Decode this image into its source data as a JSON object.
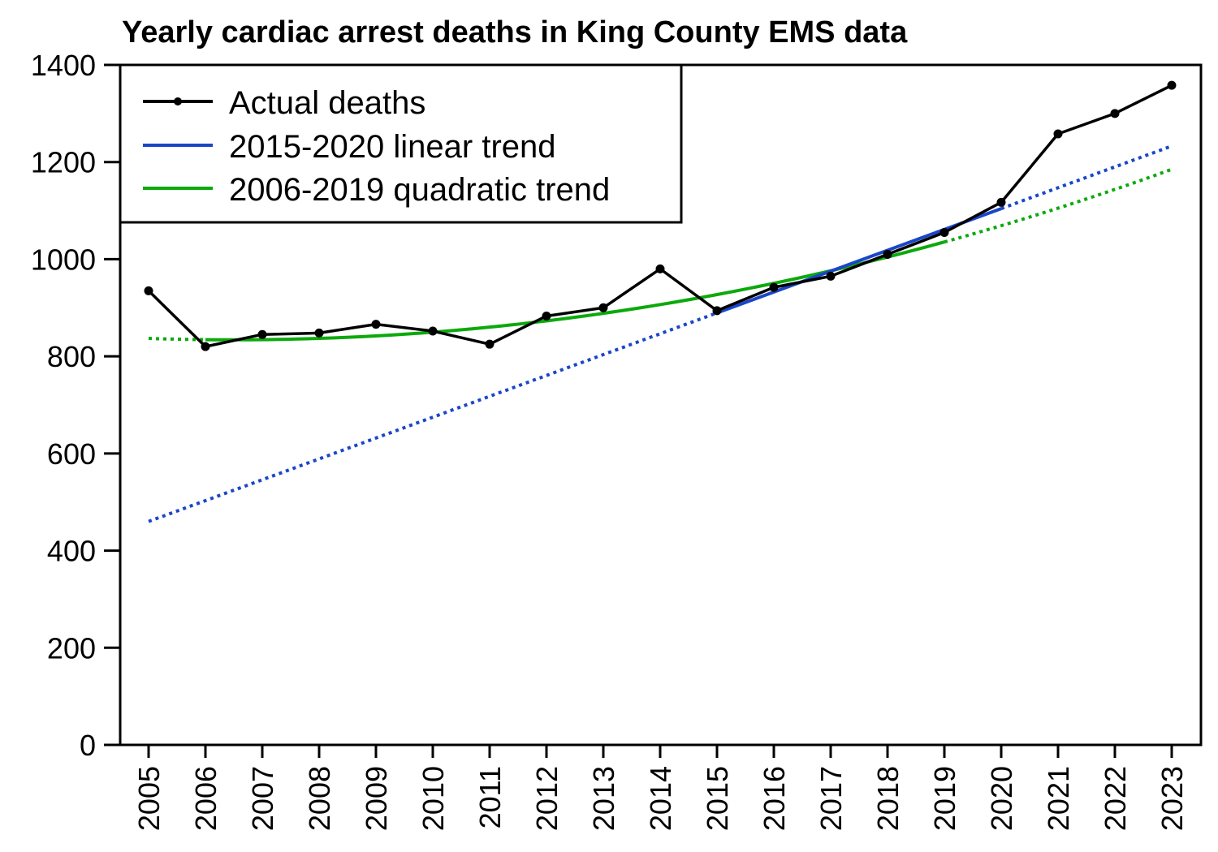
{
  "chart_data": {
    "type": "line",
    "title": "Yearly cardiac arrest deaths in King County EMS data",
    "xlabel": "",
    "ylabel": "",
    "ylim": [
      0,
      1400
    ],
    "xlim": [
      2005,
      2023
    ],
    "yticks": [
      "0",
      "200",
      "400",
      "600",
      "800",
      "1000",
      "1200",
      "1400"
    ],
    "xticks": [
      "2005",
      "2006",
      "2007",
      "2008",
      "2009",
      "2010",
      "2011",
      "2012",
      "2013",
      "2014",
      "2015",
      "2016",
      "2017",
      "2018",
      "2019",
      "2020",
      "2021",
      "2022",
      "2023"
    ],
    "grid": false,
    "legend_position": "top-left",
    "series": [
      {
        "name": "Actual deaths",
        "color": "#000000",
        "style": "line-with-points",
        "x": [
          2005,
          2006,
          2007,
          2008,
          2009,
          2010,
          2011,
          2012,
          2013,
          2014,
          2015,
          2016,
          2017,
          2018,
          2019,
          2020,
          2021,
          2022,
          2023
        ],
        "values": [
          935,
          820,
          845,
          848,
          866,
          852,
          825,
          883,
          900,
          980,
          894,
          942,
          965,
          1010,
          1055,
          1117,
          1258,
          1300,
          1358
        ]
      },
      {
        "name": "2015-2020 linear trend",
        "color": "#1a46c8",
        "fit_range": [
          2015,
          2020
        ],
        "x": [
          2005,
          2023
        ],
        "values": [
          460,
          1233
        ]
      },
      {
        "name": "2006-2019 quadratic trend",
        "color": "#0ca90c",
        "fit_range": [
          2006,
          2019
        ],
        "quadratic_vertex": {
          "x": 2006.5,
          "y": 834
        },
        "x": [
          2005,
          2019,
          2023
        ],
        "values": [
          836,
          1037,
          1185
        ]
      }
    ]
  }
}
